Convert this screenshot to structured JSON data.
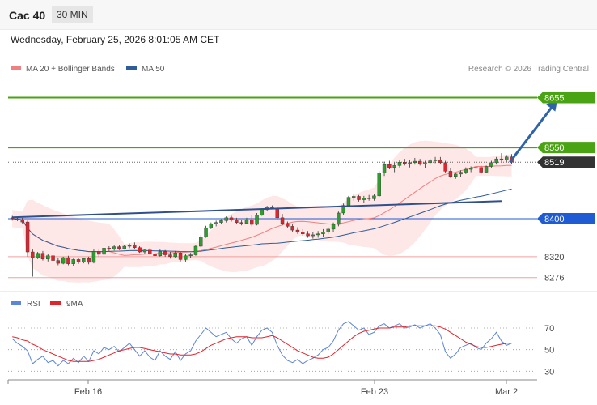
{
  "header": {
    "instrument": "Cac 40",
    "timeframe": "30 MIN"
  },
  "timestamp": "Wednesday, February 25, 2026 8:01:05 AM CET",
  "legend": {
    "ma20_label": "MA 20 + Bollinger Bands",
    "ma50_label": "MA 50",
    "copyright": "Research © 2026 Trading Central"
  },
  "colors": {
    "bullish": "#2d9d2d",
    "bearish": "#e0242d",
    "ma20": "#f08080",
    "ma50": "#2f5c9a",
    "bollinger": "#fde3e3",
    "resistance": "#4aa312",
    "support": "#1f5bd3",
    "minor_support": "#f0a0a0",
    "current": "#333333",
    "rsi": "#5b85d6",
    "rsi_ma": "#e0242d"
  },
  "chart_data": [
    {
      "type": "candlestick",
      "title": "Cac 40",
      "timeframe": "30 MIN",
      "ylim": [
        8255,
        8690
      ],
      "x_tick_labels": [
        "Feb 16",
        "Feb 23",
        "Mar 2"
      ],
      "series": [
        {
          "name": "MA 20 + Bollinger Bands",
          "type": "line"
        },
        {
          "name": "MA 50",
          "type": "line"
        }
      ],
      "candles": [
        [
          8402,
          8406,
          8396,
          8400
        ],
        [
          8400,
          8404,
          8395,
          8398
        ],
        [
          8398,
          8402,
          8390,
          8393
        ],
        [
          8393,
          8396,
          8320,
          8330
        ],
        [
          8330,
          8335,
          8278,
          8318
        ],
        [
          8318,
          8330,
          8315,
          8327
        ],
        [
          8327,
          8332,
          8312,
          8315
        ],
        [
          8315,
          8325,
          8310,
          8322
        ],
        [
          8322,
          8327,
          8308,
          8312
        ],
        [
          8312,
          8318,
          8302,
          8306
        ],
        [
          8306,
          8320,
          8304,
          8318
        ],
        [
          8318,
          8322,
          8302,
          8305
        ],
        [
          8305,
          8316,
          8300,
          8314
        ],
        [
          8314,
          8318,
          8305,
          8309
        ],
        [
          8309,
          8318,
          8306,
          8316
        ],
        [
          8316,
          8320,
          8304,
          8308
        ],
        [
          8308,
          8335,
          8306,
          8331
        ],
        [
          8331,
          8336,
          8320,
          8325
        ],
        [
          8325,
          8341,
          8322,
          8338
        ],
        [
          8338,
          8342,
          8332,
          8336
        ],
        [
          8336,
          8344,
          8333,
          8341
        ],
        [
          8341,
          8345,
          8334,
          8337
        ],
        [
          8337,
          8344,
          8335,
          8342
        ],
        [
          8342,
          8348,
          8338,
          8344
        ],
        [
          8344,
          8350,
          8336,
          8339
        ],
        [
          8339,
          8342,
          8328,
          8330
        ],
        [
          8330,
          8336,
          8325,
          8334
        ],
        [
          8334,
          8338,
          8324,
          8326
        ],
        [
          8326,
          8332,
          8318,
          8322
        ],
        [
          8322,
          8335,
          8320,
          8331
        ],
        [
          8331,
          8334,
          8320,
          8324
        ],
        [
          8324,
          8330,
          8316,
          8320
        ],
        [
          8320,
          8332,
          8318,
          8328
        ],
        [
          8328,
          8330,
          8310,
          8314
        ],
        [
          8314,
          8326,
          8308,
          8322
        ],
        [
          8322,
          8328,
          8318,
          8324
        ],
        [
          8324,
          8345,
          8322,
          8342
        ],
        [
          8342,
          8365,
          8340,
          8362
        ],
        [
          8362,
          8385,
          8360,
          8381
        ],
        [
          8381,
          8392,
          8378,
          8389
        ],
        [
          8389,
          8396,
          8384,
          8392
        ],
        [
          8392,
          8399,
          8388,
          8396
        ],
        [
          8396,
          8405,
          8392,
          8402
        ],
        [
          8402,
          8406,
          8394,
          8397
        ],
        [
          8397,
          8402,
          8388,
          8392
        ],
        [
          8392,
          8398,
          8386,
          8390
        ],
        [
          8390,
          8402,
          8388,
          8398
        ],
        [
          8398,
          8408,
          8384,
          8388
        ],
        [
          8388,
          8412,
          8386,
          8408
        ],
        [
          8408,
          8422,
          8406,
          8419
        ],
        [
          8419,
          8427,
          8416,
          8424
        ],
        [
          8424,
          8428,
          8420,
          8422
        ],
        [
          8422,
          8424,
          8398,
          8402
        ],
        [
          8402,
          8410,
          8386,
          8390
        ],
        [
          8390,
          8394,
          8380,
          8384
        ],
        [
          8384,
          8388,
          8371,
          8376
        ],
        [
          8376,
          8382,
          8368,
          8372
        ],
        [
          8372,
          8378,
          8364,
          8368
        ],
        [
          8368,
          8374,
          8360,
          8364
        ],
        [
          8364,
          8372,
          8358,
          8366
        ],
        [
          8366,
          8374,
          8360,
          8368
        ],
        [
          8368,
          8378,
          8362,
          8372
        ],
        [
          8372,
          8382,
          8368,
          8378
        ],
        [
          8378,
          8392,
          8372,
          8388
        ],
        [
          8388,
          8415,
          8384,
          8412
        ],
        [
          8412,
          8432,
          8408,
          8428
        ],
        [
          8428,
          8448,
          8426,
          8445
        ],
        [
          8445,
          8452,
          8438,
          8447
        ],
        [
          8447,
          8450,
          8436,
          8440
        ],
        [
          8440,
          8448,
          8434,
          8444
        ],
        [
          8444,
          8450,
          8438,
          8442
        ],
        [
          8442,
          8452,
          8438,
          8448
        ],
        [
          8448,
          8500,
          8446,
          8496
        ],
        [
          8496,
          8520,
          8490,
          8514
        ],
        [
          8514,
          8522,
          8504,
          8508
        ],
        [
          8508,
          8518,
          8498,
          8512
        ],
        [
          8512,
          8524,
          8508,
          8519
        ],
        [
          8519,
          8526,
          8512,
          8516
        ],
        [
          8516,
          8524,
          8508,
          8518
        ],
        [
          8518,
          8528,
          8514,
          8521
        ],
        [
          8521,
          8526,
          8512,
          8515
        ],
        [
          8515,
          8522,
          8506,
          8518
        ],
        [
          8518,
          8526,
          8514,
          8522
        ],
        [
          8522,
          8530,
          8517,
          8524
        ],
        [
          8524,
          8530,
          8515,
          8518
        ],
        [
          8518,
          8522,
          8496,
          8500
        ],
        [
          8500,
          8506,
          8486,
          8489
        ],
        [
          8489,
          8496,
          8484,
          8494
        ],
        [
          8494,
          8502,
          8488,
          8498
        ],
        [
          8498,
          8508,
          8494,
          8504
        ],
        [
          8504,
          8510,
          8498,
          8506
        ],
        [
          8506,
          8512,
          8500,
          8508
        ],
        [
          8508,
          8512,
          8494,
          8498
        ],
        [
          8498,
          8512,
          8496,
          8510
        ],
        [
          8510,
          8522,
          8506,
          8518
        ],
        [
          8518,
          8530,
          8514,
          8526
        ],
        [
          8526,
          8538,
          8520,
          8524
        ],
        [
          8524,
          8534,
          8518,
          8530
        ],
        [
          8530,
          8536,
          8516,
          8519
        ]
      ],
      "levels": [
        {
          "value": 8655,
          "type": "resistance"
        },
        {
          "value": 8550,
          "type": "resistance"
        },
        {
          "value": 8519,
          "type": "current"
        },
        {
          "value": 8400,
          "type": "support"
        },
        {
          "value": 8320,
          "type": "support"
        },
        {
          "value": 8276,
          "type": "support"
        }
      ],
      "trendline": {
        "from": [
          0,
          8403
        ],
        "to": [
          96,
          8437
        ]
      },
      "forecast_arrow": {
        "from": [
          97,
          8519
        ],
        "to": [
          107,
          8652
        ]
      }
    },
    {
      "type": "line",
      "title": "RSI",
      "ylim": [
        25,
        85
      ],
      "y_ticks": [
        30,
        50,
        70
      ],
      "series": [
        {
          "name": "RSI",
          "values": [
            60,
            56,
            53,
            49,
            37,
            41,
            44,
            38,
            40,
            35,
            40,
            37,
            42,
            38,
            44,
            39,
            49,
            46,
            52,
            50,
            53,
            48,
            52,
            56,
            50,
            44,
            49,
            43,
            40,
            49,
            44,
            41,
            48,
            40,
            46,
            49,
            58,
            64,
            70,
            66,
            62,
            64,
            66,
            60,
            56,
            60,
            62,
            54,
            62,
            68,
            70,
            66,
            54,
            45,
            40,
            38,
            41,
            37,
            40,
            42,
            45,
            50,
            52,
            58,
            68,
            74,
            76,
            72,
            68,
            70,
            64,
            66,
            72,
            74,
            70,
            72,
            74,
            70,
            71,
            73,
            70,
            72,
            74,
            70,
            64,
            48,
            42,
            46,
            52,
            54,
            56,
            52,
            50,
            56,
            60,
            66,
            58,
            54,
            56
          ]
        },
        {
          "name": "9MA",
          "values": [
            62,
            61,
            59,
            58,
            55,
            53,
            50,
            48,
            46,
            44,
            42,
            40,
            39,
            39,
            39,
            39,
            40,
            41,
            43,
            45,
            47,
            49,
            50,
            51,
            52,
            52,
            51,
            50,
            49,
            48,
            47,
            46,
            46,
            45,
            45,
            45,
            46,
            48,
            51,
            54,
            56,
            58,
            60,
            61,
            62,
            62,
            62,
            61,
            61,
            61,
            62,
            63,
            61,
            58,
            55,
            52,
            49,
            47,
            45,
            43,
            42,
            42,
            43,
            46,
            50,
            54,
            58,
            62,
            65,
            67,
            68,
            69,
            70,
            70,
            70,
            71,
            71,
            71,
            72,
            72,
            72,
            72,
            72,
            72,
            71,
            69,
            66,
            63,
            60,
            57,
            55,
            53,
            52,
            52,
            53,
            54,
            55,
            56,
            56
          ]
        }
      ]
    }
  ]
}
